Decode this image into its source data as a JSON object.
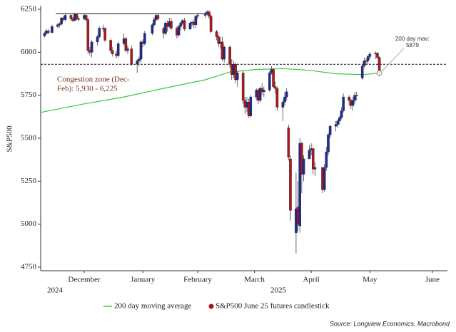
{
  "chart_data": {
    "type": "candlestick",
    "y_label": "S&P500",
    "source": "Source: Longview Economics, Macrobond",
    "xlim": [
      "2024-11-23",
      "2025-06-26"
    ],
    "ylim": [
      4729,
      6271
    ],
    "yticks": [
      4750,
      5000,
      5250,
      5500,
      5750,
      6000,
      6250
    ],
    "xticks": [
      {
        "value": "2024-12-16",
        "label": "December"
      },
      {
        "value": "2025-01-16",
        "label": "January"
      },
      {
        "value": "2025-02-14",
        "label": "February"
      },
      {
        "value": "2025-03-16",
        "label": "March"
      },
      {
        "value": "2025-04-15",
        "label": "April"
      },
      {
        "value": "2025-05-16",
        "label": "May"
      },
      {
        "value": "2025-06-18",
        "label": "June"
      }
    ],
    "year_labels": [
      "2024",
      "2025"
    ],
    "candles": {
      "name": "S&P500 June 25 futures candlestick",
      "up_color": "#1c2a9a",
      "down_color": "#b3161b",
      "legend_color": "#a01818",
      "x": [
        "2024-11-25",
        "2024-11-26",
        "2024-11-27",
        "2024-11-29",
        "2024-12-02",
        "2024-12-03",
        "2024-12-04",
        "2024-12-05",
        "2024-12-06",
        "2024-12-09",
        "2024-12-10",
        "2024-12-11",
        "2024-12-12",
        "2024-12-13",
        "2024-12-16",
        "2024-12-17",
        "2024-12-18",
        "2024-12-19",
        "2024-12-20",
        "2024-12-23",
        "2024-12-24",
        "2024-12-26",
        "2024-12-27",
        "2024-12-30",
        "2024-12-31",
        "2025-01-02",
        "2025-01-03",
        "2025-01-06",
        "2025-01-07",
        "2025-01-08",
        "2025-01-10",
        "2025-01-13",
        "2025-01-14",
        "2025-01-15",
        "2025-01-16",
        "2025-01-17",
        "2025-01-21",
        "2025-01-22",
        "2025-01-23",
        "2025-01-24",
        "2025-01-27",
        "2025-01-28",
        "2025-01-29",
        "2025-01-30",
        "2025-01-31",
        "2025-02-03",
        "2025-02-04",
        "2025-02-05",
        "2025-02-06",
        "2025-02-07",
        "2025-02-10",
        "2025-02-11",
        "2025-02-12",
        "2025-02-13",
        "2025-02-14",
        "2025-02-18",
        "2025-02-19",
        "2025-02-20",
        "2025-02-21",
        "2025-02-24",
        "2025-02-25",
        "2025-02-26",
        "2025-02-27",
        "2025-02-28",
        "2025-03-03",
        "2025-03-04",
        "2025-03-05",
        "2025-03-06",
        "2025-03-07",
        "2025-03-10",
        "2025-03-11",
        "2025-03-12",
        "2025-03-13",
        "2025-03-14",
        "2025-03-17",
        "2025-03-18",
        "2025-03-19",
        "2025-03-20",
        "2025-03-21",
        "2025-03-24",
        "2025-03-25",
        "2025-03-26",
        "2025-03-27",
        "2025-03-28",
        "2025-03-31",
        "2025-04-01",
        "2025-04-02",
        "2025-04-03",
        "2025-04-04",
        "2025-04-07",
        "2025-04-08",
        "2025-04-09",
        "2025-04-10",
        "2025-04-11",
        "2025-04-14",
        "2025-04-15",
        "2025-04-16",
        "2025-04-17",
        "2025-04-21",
        "2025-04-22",
        "2025-04-23",
        "2025-04-24",
        "2025-04-25",
        "2025-04-28",
        "2025-04-29",
        "2025-04-30",
        "2025-05-01",
        "2025-05-02",
        "2025-05-05",
        "2025-05-06",
        "2025-05-07",
        "2025-05-08",
        "2025-05-09",
        "2025-05-12",
        "2025-05-13",
        "2025-05-14",
        "2025-05-15",
        "2025-05-16",
        "2025-05-19",
        "2025-05-20",
        "2025-05-21"
      ],
      "open": [
        6095,
        6110,
        6125,
        6115,
        6150,
        6160,
        6165,
        6200,
        6190,
        6215,
        6195,
        6185,
        6220,
        6195,
        6195,
        6215,
        6190,
        6010,
        6000,
        6060,
        6090,
        6140,
        6140,
        6070,
        6010,
        5990,
        5980,
        6050,
        6080,
        6010,
        6020,
        5930,
        5950,
        5960,
        6060,
        6050,
        6110,
        6160,
        6190,
        6215,
        6140,
        6110,
        6170,
        6150,
        6180,
        6140,
        6100,
        6150,
        6170,
        6185,
        6135,
        6170,
        6175,
        6160,
        6210,
        6215,
        6225,
        6235,
        6210,
        6120,
        6090,
        6050,
        6060,
        5960,
        6030,
        5930,
        5870,
        5930,
        5840,
        5880,
        5720,
        5680,
        5710,
        5630,
        5740,
        5780,
        5720,
        5790,
        5770,
        5780,
        5880,
        5900,
        5800,
        5790,
        5680,
        5710,
        5740,
        5560,
        5380,
        4950,
        5100,
        4990,
        5470,
        5290,
        5380,
        5430,
        5440,
        5320,
        5330,
        5200,
        5330,
        5420,
        5520,
        5570,
        5580,
        5600,
        5620,
        5660,
        5740,
        5720,
        5690,
        5720,
        5750,
        5850,
        5920,
        5950,
        5950,
        5975,
        5990,
        5995,
        5970
      ],
      "high": [
        6120,
        6135,
        6135,
        6160,
        6170,
        6175,
        6205,
        6210,
        6225,
        6220,
        6205,
        6230,
        6225,
        6210,
        6225,
        6225,
        6200,
        6030,
        6070,
        6100,
        6150,
        6160,
        6145,
        6080,
        6030,
        6010,
        6060,
        6110,
        6090,
        6040,
        6040,
        5960,
        5975,
        6070,
        6075,
        6125,
        6170,
        6205,
        6225,
        6225,
        6150,
        6180,
        6185,
        6200,
        6200,
        6150,
        6160,
        6180,
        6195,
        6200,
        6180,
        6185,
        6190,
        6215,
        6230,
        6235,
        6245,
        6245,
        6220,
        6130,
        6100,
        6090,
        6090,
        6040,
        6040,
        5960,
        5950,
        5940,
        5890,
        5890,
        5740,
        5740,
        5730,
        5750,
        5790,
        5790,
        5800,
        5820,
        5800,
        5890,
        5920,
        5910,
        5830,
        5800,
        5720,
        5770,
        5790,
        5580,
        5400,
        5300,
        5250,
        5500,
        5480,
        5400,
        5460,
        5470,
        5440,
        5360,
        5330,
        5350,
        5450,
        5530,
        5580,
        5600,
        5610,
        5630,
        5680,
        5760,
        5750,
        5730,
        5740,
        5770,
        5770,
        5930,
        5970,
        5965,
        5985,
        6000,
        6005,
        6000,
        5975
      ],
      "low": [
        6085,
        6100,
        6105,
        6110,
        6140,
        6145,
        6155,
        6180,
        6180,
        6185,
        6175,
        6180,
        6185,
        6180,
        6185,
        6180,
        5990,
        5980,
        5970,
        6040,
        6080,
        6120,
        6060,
        5995,
        5975,
        5965,
        5970,
        6040,
        6000,
        5990,
        5920,
        5880,
        5920,
        5940,
        6030,
        6040,
        6100,
        6150,
        6180,
        6185,
        6080,
        6100,
        6120,
        6140,
        6130,
        6080,
        6090,
        6130,
        6160,
        6125,
        6130,
        6150,
        6140,
        6140,
        6195,
        6200,
        6215,
        6195,
        6110,
        6070,
        6030,
        6020,
        5950,
        5940,
        5910,
        5840,
        5850,
        5820,
        5800,
        5700,
        5640,
        5650,
        5620,
        5620,
        5720,
        5700,
        5710,
        5750,
        5740,
        5770,
        5870,
        5790,
        5760,
        5660,
        5600,
        5690,
        5720,
        5370,
        5020,
        4830,
        4960,
        4950,
        5180,
        5250,
        5380,
        5400,
        5290,
        5280,
        5180,
        5190,
        5310,
        5400,
        5500,
        5540,
        5560,
        5580,
        5610,
        5650,
        5690,
        5670,
        5660,
        5700,
        5720,
        5840,
        5910,
        5930,
        5930,
        5960,
        5960,
        5960,
        5860
      ],
      "close": [
        6110,
        6125,
        6115,
        6150,
        6160,
        6165,
        6200,
        6190,
        6215,
        6195,
        6185,
        6220,
        6195,
        6195,
        6215,
        6190,
        6010,
        6000,
        6060,
        6090,
        6140,
        6140,
        6070,
        6010,
        5990,
        5980,
        6050,
        6080,
        6010,
        6020,
        5930,
        5950,
        5960,
        6060,
        6050,
        6110,
        6160,
        6190,
        6215,
        6195,
        6110,
        6170,
        6150,
        6180,
        6140,
        6100,
        6150,
        6170,
        6185,
        6135,
        6170,
        6175,
        6160,
        6210,
        6215,
        6225,
        6235,
        6210,
        6120,
        6090,
        6050,
        6060,
        5960,
        6030,
        5930,
        5870,
        5930,
        5840,
        5880,
        5720,
        5680,
        5710,
        5630,
        5740,
        5780,
        5720,
        5790,
        5770,
        5780,
        5880,
        5900,
        5800,
        5790,
        5680,
        5710,
        5740,
        5770,
        5390,
        5080,
        5090,
        5000,
        5470,
        5290,
        5380,
        5430,
        5440,
        5320,
        5330,
        5200,
        5330,
        5420,
        5520,
        5570,
        5580,
        5600,
        5620,
        5660,
        5740,
        5720,
        5690,
        5720,
        5750,
        5750,
        5920,
        5950,
        5950,
        5975,
        5990,
        5995,
        5970,
        5880
      ]
    },
    "moving_average": {
      "name": "200 day moving average",
      "color": "#3cc83c",
      "x": [
        "2024-11-23",
        "2024-12-16",
        "2025-01-06",
        "2025-01-27",
        "2025-02-18",
        "2025-03-03",
        "2025-03-17",
        "2025-03-31",
        "2025-04-14",
        "2025-04-28",
        "2025-05-12",
        "2025-05-21"
      ],
      "values": [
        5650,
        5700,
        5740,
        5790,
        5840,
        5885,
        5900,
        5905,
        5895,
        5875,
        5870,
        5879
      ]
    },
    "hlines": [
      {
        "value": 6225,
        "from": "2024-12-01",
        "to": "2025-02-20",
        "style": "solid"
      },
      {
        "value": 5930,
        "style": "dashed"
      }
    ],
    "congestion_note": [
      "Congestion zone (Dec-",
      "Feb): 5,930 - 6,225"
    ],
    "ma_note": {
      "text": "200 day mav:",
      "value": 5879,
      "x": "2025-05-21"
    }
  }
}
